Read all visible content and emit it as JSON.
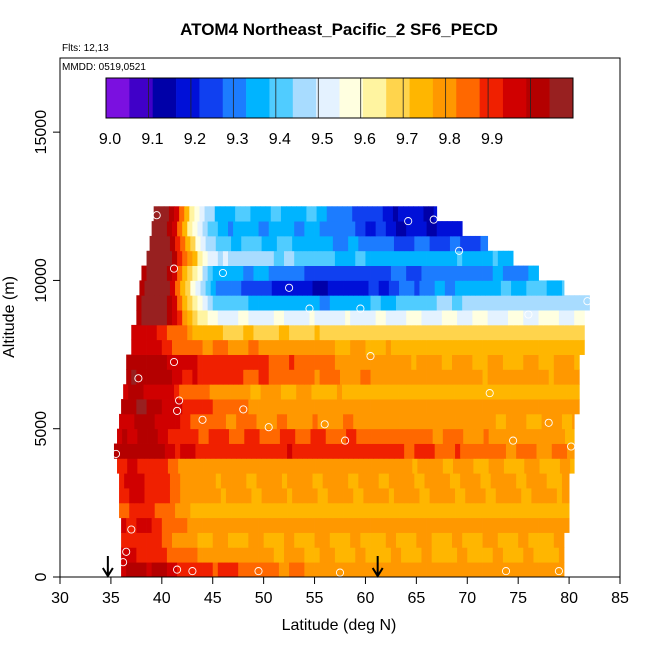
{
  "chart_data": {
    "type": "heatmap",
    "title": "ATOM4 Northeast_Pacific_2 SF6_PECD",
    "flights_label": "Flts: 12,13",
    "dates_label": "MMDD: 0519,0521",
    "xlabel": "Latitude (deg N)",
    "ylabel": "Altitude (m)",
    "xlim": [
      30,
      85
    ],
    "ylim": [
      0,
      17500
    ],
    "x_ticks": [
      "30",
      "35",
      "40",
      "45",
      "50",
      "55",
      "60",
      "65",
      "70",
      "75",
      "80",
      "85"
    ],
    "y_ticks": [
      "0",
      "5000",
      "10000",
      "15000"
    ],
    "colorbar": {
      "ticks": [
        "9.0",
        "9.1",
        "9.2",
        "9.3",
        "9.4",
        "9.5",
        "9.6",
        "9.7",
        "9.8",
        "9.9"
      ],
      "range": [
        8.95,
        10.05
      ],
      "colors": [
        "#7b10e0",
        "#4000c8",
        "#0000a8",
        "#0010d8",
        "#1040f0",
        "#1c7cff",
        "#00b4ff",
        "#50ccff",
        "#a8dcff",
        "#e4f2ff",
        "#ffffe0",
        "#fff4a0",
        "#ffd44c",
        "#ffb600",
        "#ff9800",
        "#ff6800",
        "#f02000",
        "#d00000",
        "#b40000",
        "#982020"
      ]
    },
    "latitude_domain_by_altitude": [
      {
        "alt": 250,
        "lat_min": 36.0,
        "lat_max": 79.5
      },
      {
        "alt": 750,
        "lat_min": 36.0,
        "lat_max": 79.5
      },
      {
        "alt": 1250,
        "lat_min": 36.0,
        "lat_max": 79.5
      },
      {
        "alt": 1750,
        "lat_min": 36.0,
        "lat_max": 80.0
      },
      {
        "alt": 2250,
        "lat_min": 35.8,
        "lat_max": 80.0
      },
      {
        "alt": 2750,
        "lat_min": 35.8,
        "lat_max": 80.0
      },
      {
        "alt": 3250,
        "lat_min": 35.8,
        "lat_max": 80.0
      },
      {
        "alt": 3750,
        "lat_min": 35.6,
        "lat_max": 80.5
      },
      {
        "alt": 4250,
        "lat_min": 35.3,
        "lat_max": 80.5
      },
      {
        "alt": 4750,
        "lat_min": 35.6,
        "lat_max": 80.5
      },
      {
        "alt": 5250,
        "lat_min": 35.8,
        "lat_max": 80.5
      },
      {
        "alt": 5750,
        "lat_min": 36.0,
        "lat_max": 81.0
      },
      {
        "alt": 6250,
        "lat_min": 36.2,
        "lat_max": 81.0
      },
      {
        "alt": 6750,
        "lat_min": 36.5,
        "lat_max": 81.0
      },
      {
        "alt": 7250,
        "lat_min": 36.5,
        "lat_max": 81.0
      },
      {
        "alt": 7750,
        "lat_min": 37.0,
        "lat_max": 81.5
      },
      {
        "alt": 8250,
        "lat_min": 37.0,
        "lat_max": 81.5
      },
      {
        "alt": 8750,
        "lat_min": 37.5,
        "lat_max": 81.5
      },
      {
        "alt": 9250,
        "lat_min": 37.5,
        "lat_max": 82.0
      },
      {
        "alt": 9750,
        "lat_min": 37.8,
        "lat_max": 79.5
      },
      {
        "alt": 10250,
        "lat_min": 38.0,
        "lat_max": 77.0
      },
      {
        "alt": 10750,
        "lat_min": 38.5,
        "lat_max": 74.5
      },
      {
        "alt": 11250,
        "lat_min": 38.8,
        "lat_max": 72.0
      },
      {
        "alt": 11750,
        "lat_min": 39.0,
        "lat_max": 69.5
      },
      {
        "alt": 12250,
        "lat_min": 39.2,
        "lat_max": 67.0
      }
    ],
    "samples": [
      {
        "lat": 39.5,
        "alt": 12200
      },
      {
        "lat": 64.2,
        "alt": 12000
      },
      {
        "lat": 66.7,
        "alt": 12050
      },
      {
        "lat": 69.2,
        "alt": 11000
      },
      {
        "lat": 41.2,
        "alt": 10400
      },
      {
        "lat": 46.0,
        "alt": 10250
      },
      {
        "lat": 52.5,
        "alt": 9750
      },
      {
        "lat": 54.5,
        "alt": 9050
      },
      {
        "lat": 59.5,
        "alt": 9050
      },
      {
        "lat": 81.8,
        "alt": 9300
      },
      {
        "lat": 76.0,
        "alt": 8850
      },
      {
        "lat": 41.2,
        "alt": 7250
      },
      {
        "lat": 60.5,
        "alt": 7450
      },
      {
        "lat": 37.7,
        "alt": 6700
      },
      {
        "lat": 72.2,
        "alt": 6200
      },
      {
        "lat": 41.7,
        "alt": 5950
      },
      {
        "lat": 41.5,
        "alt": 5600
      },
      {
        "lat": 48.0,
        "alt": 5650
      },
      {
        "lat": 44.0,
        "alt": 5300
      },
      {
        "lat": 78.0,
        "alt": 5200
      },
      {
        "lat": 50.5,
        "alt": 5050
      },
      {
        "lat": 56.0,
        "alt": 5150
      },
      {
        "lat": 58.0,
        "alt": 4600
      },
      {
        "lat": 74.5,
        "alt": 4600
      },
      {
        "lat": 80.2,
        "alt": 4400
      },
      {
        "lat": 35.5,
        "alt": 4150
      },
      {
        "lat": 37.0,
        "alt": 1600
      },
      {
        "lat": 36.5,
        "alt": 850
      },
      {
        "lat": 36.2,
        "alt": 500
      },
      {
        "lat": 41.5,
        "alt": 250
      },
      {
        "lat": 43.0,
        "alt": 200
      },
      {
        "lat": 49.5,
        "alt": 200
      },
      {
        "lat": 57.5,
        "alt": 150
      },
      {
        "lat": 73.8,
        "alt": 200
      },
      {
        "lat": 79.0,
        "alt": 200
      }
    ],
    "arrows_at_lat": [
      34.7,
      61.2
    ],
    "grid": false
  }
}
